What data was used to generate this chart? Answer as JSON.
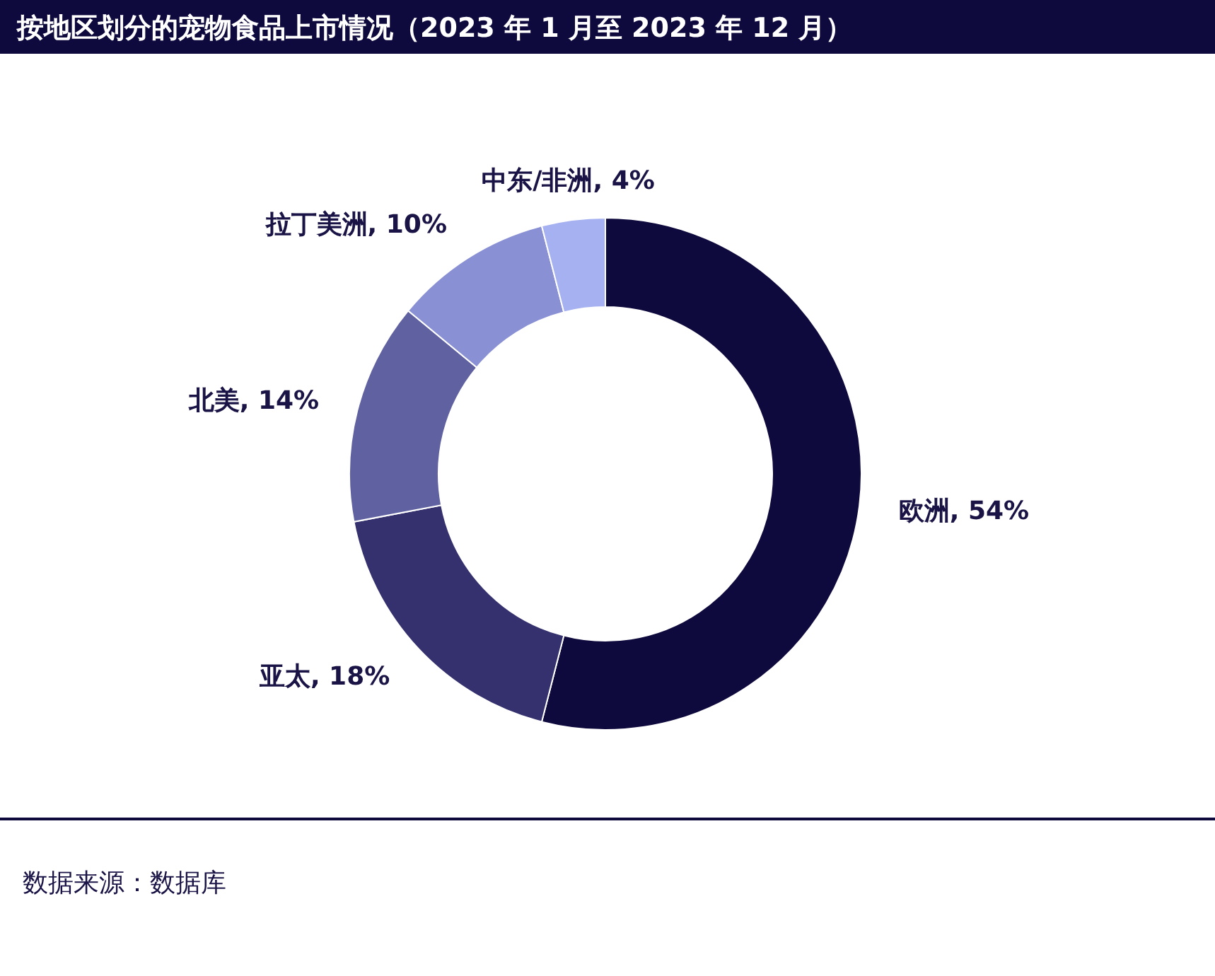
{
  "chart_data": {
    "type": "donut",
    "title": "按地区划分的宠物食品上市情况（2023 年 1 月至 2023 年 12 月）",
    "categories": [
      "欧洲",
      "亚太",
      "北美",
      "拉丁美洲",
      "中东/非洲"
    ],
    "values": [
      54,
      18,
      14,
      10,
      4
    ],
    "colors": [
      "#0f0a3d",
      "#35316e",
      "#5f61a1",
      "#8a90d4",
      "#a6b1f1"
    ],
    "value_labels": [
      ", 54%",
      ", 18%",
      ", 14%",
      ", 10%",
      ", 4%"
    ],
    "annotations": [
      "数据来源：数据库"
    ]
  }
}
